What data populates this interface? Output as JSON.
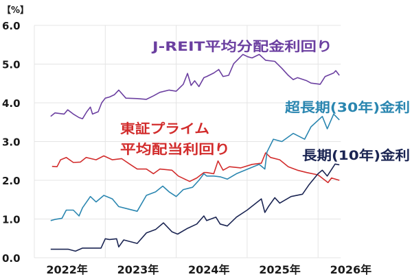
{
  "chart_data": {
    "type": "line",
    "unit_label": "【%】",
    "ylim": [
      0,
      6
    ],
    "y_ticks": [
      "0.0",
      "1.0",
      "2.0",
      "3.0",
      "4.0",
      "5.0",
      "6.0"
    ],
    "xlim": [
      2022.0,
      2026.32
    ],
    "x_ticks": [
      "2022年",
      "2023年",
      "2024年",
      "2025年",
      "2026年"
    ],
    "grid": true,
    "series": [
      {
        "name": "J-REIT平均分配金利回り",
        "color": "#6b3fa0",
        "x": [
          2022.23,
          2022.29,
          2022.42,
          2022.47,
          2022.55,
          2022.63,
          2022.68,
          2022.74,
          2022.79,
          2022.82,
          2022.9,
          2022.95,
          2023.0,
          2023.06,
          2023.13,
          2023.19,
          2023.29,
          2023.45,
          2023.58,
          2023.68,
          2023.77,
          2023.9,
          2024.0,
          2024.1,
          2024.16,
          2024.21,
          2024.26,
          2024.32,
          2024.39,
          2024.43,
          2024.53,
          2024.6,
          2024.66,
          2024.74,
          2024.81,
          2024.94,
          2025.01,
          2025.07,
          2025.17,
          2025.26,
          2025.39,
          2025.49,
          2025.58,
          2025.65,
          2025.71,
          2025.84,
          2025.9,
          2026.03,
          2026.1,
          2026.22,
          2026.25,
          2026.3
        ],
        "y": [
          3.65,
          3.74,
          3.71,
          3.82,
          3.71,
          3.62,
          3.59,
          3.77,
          3.89,
          3.71,
          3.77,
          4.0,
          4.12,
          4.15,
          4.21,
          4.33,
          4.12,
          4.11,
          4.09,
          4.18,
          4.27,
          4.33,
          4.3,
          4.48,
          4.76,
          4.45,
          4.57,
          4.42,
          4.65,
          4.68,
          4.77,
          4.86,
          4.68,
          4.71,
          5.01,
          5.25,
          5.19,
          5.16,
          5.25,
          5.1,
          5.07,
          4.89,
          4.71,
          4.6,
          4.65,
          4.57,
          4.51,
          4.48,
          4.68,
          4.77,
          4.83,
          4.71
        ]
      },
      {
        "name": "東証プライム平均配当利回り",
        "color": "#d22c2c",
        "x": [
          2022.25,
          2022.32,
          2022.37,
          2022.45,
          2022.55,
          2022.65,
          2022.73,
          2022.87,
          2022.98,
          2023.1,
          2023.23,
          2023.35,
          2023.45,
          2023.58,
          2023.68,
          2023.77,
          2023.94,
          2024.03,
          2024.19,
          2024.29,
          2024.39,
          2024.43,
          2024.53,
          2024.59,
          2024.66,
          2024.75,
          2024.91,
          2025.07,
          2025.2,
          2025.26,
          2025.33,
          2025.46,
          2025.58,
          2025.71,
          2025.84,
          2026.0,
          2026.14,
          2026.19,
          2026.3
        ],
        "y": [
          2.36,
          2.35,
          2.53,
          2.59,
          2.46,
          2.47,
          2.59,
          2.53,
          2.63,
          2.53,
          2.56,
          2.41,
          2.29,
          2.29,
          2.17,
          2.29,
          2.26,
          2.11,
          1.97,
          2.06,
          2.2,
          2.2,
          2.17,
          2.5,
          2.26,
          2.35,
          2.32,
          2.41,
          2.44,
          2.71,
          2.59,
          2.53,
          2.35,
          2.26,
          2.2,
          2.14,
          1.94,
          2.06,
          2.0
        ]
      },
      {
        "name": "超長期(30年)金利",
        "color": "#2a86b0",
        "x": [
          2022.23,
          2022.29,
          2022.39,
          2022.45,
          2022.55,
          2022.63,
          2022.68,
          2022.79,
          2022.87,
          2022.98,
          2023.1,
          2023.19,
          2023.32,
          2023.45,
          2023.58,
          2023.71,
          2023.81,
          2023.9,
          2024.0,
          2024.1,
          2024.23,
          2024.32,
          2024.39,
          2024.43,
          2024.53,
          2024.62,
          2024.72,
          2024.85,
          2024.97,
          2025.17,
          2025.25,
          2025.28,
          2025.37,
          2025.49,
          2025.65,
          2025.81,
          2025.9,
          2026.06,
          2026.13,
          2026.22,
          2026.3
        ],
        "y": [
          0.96,
          0.99,
          1.02,
          1.23,
          1.23,
          1.08,
          1.29,
          1.58,
          1.44,
          1.61,
          1.52,
          1.32,
          1.26,
          1.2,
          1.61,
          1.7,
          1.85,
          1.7,
          1.58,
          1.76,
          1.82,
          2.0,
          2.17,
          2.11,
          2.11,
          2.09,
          2.03,
          2.17,
          2.26,
          2.41,
          2.29,
          2.73,
          3.06,
          3.0,
          3.21,
          3.06,
          3.38,
          3.65,
          3.33,
          3.71,
          3.56
        ]
      },
      {
        "name": "長期(10年)金利",
        "color": "#1a2452",
        "x": [
          2022.23,
          2022.48,
          2022.58,
          2022.68,
          2022.94,
          2023.0,
          2023.06,
          2023.16,
          2023.19,
          2023.26,
          2023.45,
          2023.58,
          2023.71,
          2023.82,
          2023.94,
          2024.02,
          2024.16,
          2024.29,
          2024.39,
          2024.43,
          2024.56,
          2024.62,
          2024.72,
          2024.85,
          2025.0,
          2025.2,
          2025.25,
          2025.3,
          2025.39,
          2025.46,
          2025.62,
          2025.78,
          2025.87,
          2026.0,
          2026.06,
          2026.13,
          2026.24,
          2026.3
        ],
        "y": [
          0.22,
          0.22,
          0.17,
          0.25,
          0.25,
          0.49,
          0.47,
          0.49,
          0.28,
          0.46,
          0.37,
          0.64,
          0.73,
          0.9,
          0.67,
          0.61,
          0.76,
          0.87,
          1.08,
          0.96,
          1.05,
          0.87,
          0.82,
          1.05,
          1.23,
          1.52,
          1.17,
          1.32,
          1.55,
          1.41,
          1.58,
          1.64,
          1.88,
          2.17,
          2.26,
          2.11,
          2.42,
          2.4
        ]
      }
    ],
    "annotations": {
      "jreit": "J-REIT平均分配金利回り",
      "tse_line1": "東証プライム",
      "tse_line2": "平均配当利回り",
      "jgb30": "超長期(30年)金利",
      "jgb10": "長期(10年)金利"
    }
  }
}
